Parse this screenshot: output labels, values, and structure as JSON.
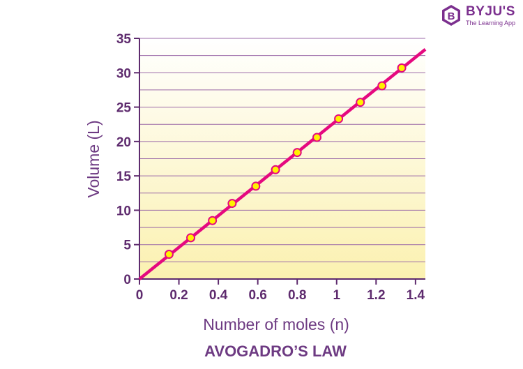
{
  "logo": {
    "brand": "BYJU'S",
    "tagline": "The Learning App",
    "badge_letter": "B",
    "color": "#7b2f8e"
  },
  "chart_data": {
    "type": "line",
    "title": "AVOGADRO’S LAW",
    "xlabel": "Number of moles (n)",
    "ylabel": "Volume (L)",
    "xlim": [
      0,
      1.45
    ],
    "ylim": [
      0,
      35
    ],
    "xticks": [
      "0",
      "0.2",
      "0.4",
      "0.6",
      "0.8",
      "1",
      "1.2",
      "1.4"
    ],
    "yticks": [
      "0",
      "5",
      "10",
      "15",
      "20",
      "25",
      "30",
      "35"
    ],
    "grid": "horizontal lines every 2.5 L",
    "background": "gradient from pale yellow (bottom) to white (top)",
    "line": {
      "x": [
        0,
        1.45
      ],
      "y": [
        0,
        33.4
      ],
      "color": "#e5097f"
    },
    "points": {
      "x": [
        0.15,
        0.26,
        0.37,
        0.47,
        0.59,
        0.69,
        0.8,
        0.9,
        1.01,
        1.12,
        1.23,
        1.33
      ],
      "y": [
        3.6,
        6.0,
        8.5,
        11.0,
        13.5,
        15.9,
        18.4,
        20.6,
        23.3,
        25.7,
        28.1,
        30.7
      ],
      "fill": "#fff200",
      "stroke": "#e5097f"
    },
    "colors": {
      "text": "#5e2b6e",
      "axis": "#5e2b6e",
      "grid": "#9b6aa8",
      "gradient_top": "#ffffff",
      "gradient_bottom": "#fbf1b0"
    }
  }
}
